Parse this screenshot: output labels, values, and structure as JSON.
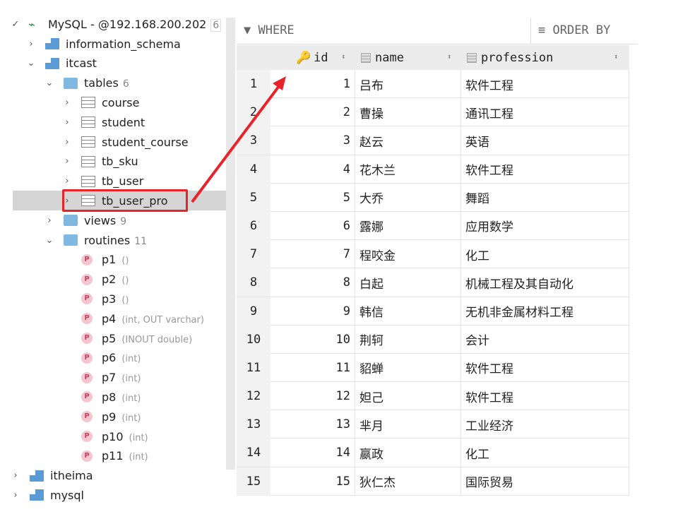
{
  "tree": {
    "connection": {
      "label": "MySQL - @192.168.200.202",
      "count": "6"
    },
    "items": [
      {
        "label": "information_schema",
        "type": "schema",
        "expanded": false
      },
      {
        "label": "itcast",
        "type": "schema",
        "expanded": true
      },
      {
        "label": "tables",
        "count": "6",
        "type": "folder"
      },
      {
        "label": "course",
        "type": "table"
      },
      {
        "label": "student",
        "type": "table"
      },
      {
        "label": "student_course",
        "type": "table"
      },
      {
        "label": "tb_sku",
        "type": "table"
      },
      {
        "label": "tb_user",
        "type": "table"
      },
      {
        "label": "tb_user_pro",
        "type": "table",
        "selected": true
      },
      {
        "label": "views",
        "count": "9",
        "type": "folder"
      },
      {
        "label": "routines",
        "count": "11",
        "type": "folder"
      }
    ],
    "routines": [
      {
        "name": "p1",
        "args": "()"
      },
      {
        "name": "p2",
        "args": "()"
      },
      {
        "name": "p3",
        "args": "()"
      },
      {
        "name": "p4",
        "args": "(int, OUT varchar)"
      },
      {
        "name": "p5",
        "args": "(INOUT double)"
      },
      {
        "name": "p6",
        "args": "(int)"
      },
      {
        "name": "p7",
        "args": "(int)"
      },
      {
        "name": "p8",
        "args": "(int)"
      },
      {
        "name": "p9",
        "args": "(int)"
      },
      {
        "name": "p10",
        "args": "(int)"
      },
      {
        "name": "p11",
        "args": "(int)"
      }
    ],
    "bottom": [
      {
        "label": "itheima"
      },
      {
        "label": "mysql"
      }
    ],
    "routine_icon_letter": "P"
  },
  "toolbar": {
    "where": "WHERE",
    "order_by": "ORDER BY"
  },
  "grid": {
    "columns": [
      "id",
      "name",
      "profession"
    ],
    "rows": [
      [
        "1",
        "1",
        "吕布",
        "软件工程"
      ],
      [
        "2",
        "2",
        "曹操",
        "通讯工程"
      ],
      [
        "3",
        "3",
        "赵云",
        "英语"
      ],
      [
        "4",
        "4",
        "花木兰",
        "软件工程"
      ],
      [
        "5",
        "5",
        "大乔",
        "舞蹈"
      ],
      [
        "6",
        "6",
        "露娜",
        "应用数学"
      ],
      [
        "7",
        "7",
        "程咬金",
        "化工"
      ],
      [
        "8",
        "8",
        "白起",
        "机械工程及其自动化"
      ],
      [
        "9",
        "9",
        "韩信",
        "无机非金属材料工程"
      ],
      [
        "10",
        "10",
        "荆轲",
        "会计"
      ],
      [
        "11",
        "11",
        "貂蝉",
        "软件工程"
      ],
      [
        "12",
        "12",
        "妲己",
        "软件工程"
      ],
      [
        "13",
        "13",
        "芈月",
        "工业经济"
      ],
      [
        "14",
        "14",
        "嬴政",
        "化工"
      ],
      [
        "15",
        "15",
        "狄仁杰",
        "国际贸易"
      ]
    ]
  },
  "colors": {
    "annotation": "#e8242a",
    "selection": "#d5d5d5"
  }
}
